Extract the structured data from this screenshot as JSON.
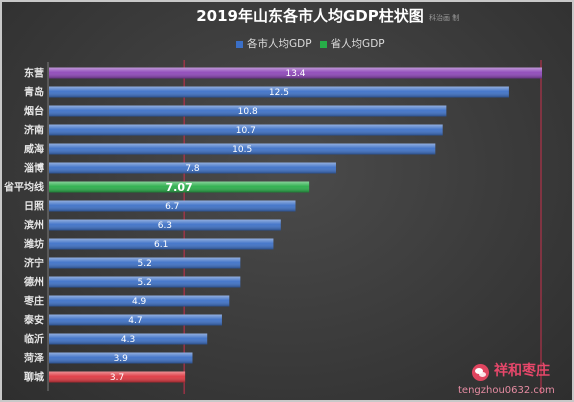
{
  "credit": "科治画 制",
  "chart_data": {
    "type": "bar",
    "orientation": "horizontal",
    "title": "2019年山东各市人均GDP柱状图",
    "categories": [
      "东营",
      "青岛",
      "烟台",
      "济南",
      "威海",
      "淄博",
      "省平均线",
      "日照",
      "滨州",
      "潍坊",
      "济宁",
      "德州",
      "枣庄",
      "泰安",
      "临沂",
      "菏泽",
      "聊城"
    ],
    "series": [
      {
        "name": "各市人均GDP",
        "color": "#3b6fc6",
        "values": [
          13.4,
          12.5,
          10.8,
          10.7,
          10.5,
          7.8,
          null,
          6.7,
          6.3,
          6.1,
          5.2,
          5.2,
          4.9,
          4.7,
          4.3,
          3.9,
          3.7
        ]
      },
      {
        "name": "省人均GDP",
        "color": "#27ad48",
        "values": [
          null,
          null,
          null,
          null,
          null,
          null,
          7.07,
          null,
          null,
          null,
          null,
          null,
          null,
          null,
          null,
          null,
          null
        ]
      }
    ],
    "highlight_colors": {
      "max": "#8d45b8",
      "min": "#de363f"
    },
    "reference_lines_x": [
      3.7,
      13.4
    ],
    "reference_line_color": "#c9304c",
    "xlim": [
      0,
      13.4
    ],
    "grid": false,
    "legend_position": "top-center"
  },
  "watermark": {
    "brand": "祥和枣庄",
    "site": "tengzhou0632.com"
  }
}
